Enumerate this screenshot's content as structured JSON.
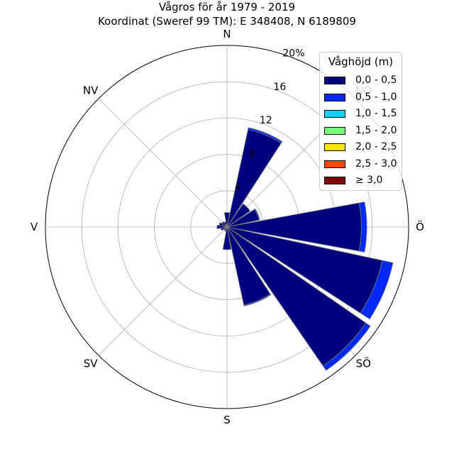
{
  "title_line1": "Vågros för år 1979 - 2019",
  "title_line2": "Koordinat (Sweref 99 TM): E 348408, N 6189809",
  "legend": {
    "title": "Våghöjd (m)",
    "entries": [
      {
        "label": "0,0 - 0,5",
        "color": "#00007f"
      },
      {
        "label": "0,5 - 1,0",
        "color": "#0028ff"
      },
      {
        "label": "1,0 - 1,5",
        "color": "#00d4ff"
      },
      {
        "label": "1,5 - 2,0",
        "color": "#7bff7b"
      },
      {
        "label": "2,0 - 2,5",
        "color": "#ffe500"
      },
      {
        "label": "2,5 - 3,0",
        "color": "#ff4a00"
      },
      {
        "label": "≥ 3,0",
        "color": "#7f0000"
      }
    ]
  },
  "chart_data": {
    "type": "windrose",
    "radial_max": 20,
    "radial_ticks": [
      4,
      8,
      12,
      16,
      20
    ],
    "radial_tick_labels": [
      "4",
      "8",
      "12",
      "16",
      "20%"
    ],
    "direction_labels": [
      {
        "label": "N",
        "angle": 0
      },
      {
        "label": "NO",
        "angle": 45
      },
      {
        "label": "Ö",
        "angle": 90
      },
      {
        "label": "SÖ",
        "angle": 135
      },
      {
        "label": "S",
        "angle": 180
      },
      {
        "label": "SV",
        "angle": 225
      },
      {
        "label": "V",
        "angle": 270
      },
      {
        "label": "NV",
        "angle": 315
      }
    ],
    "sector_width_deg": 22.5,
    "bin_labels": [
      "0,0 - 0,5",
      "0,5 - 1,0",
      "1,0 - 1,5",
      "1,5 - 2,0",
      "2,0 - 2,5",
      "2,5 - 3,0",
      "≥ 3,0"
    ],
    "directions": [
      0,
      22.5,
      45,
      67.5,
      90,
      112.5,
      135,
      157.5,
      180,
      202.5,
      225,
      247.5,
      270,
      292.5,
      315,
      337.5
    ],
    "values": [
      [
        1.6,
        0,
        0,
        0,
        0,
        0,
        0
      ],
      [
        11.0,
        0.2,
        0,
        0,
        0,
        0,
        0
      ],
      [
        3.1,
        0,
        0,
        0,
        0,
        0,
        0
      ],
      [
        3.6,
        0.1,
        0,
        0,
        0,
        0,
        0
      ],
      [
        14.8,
        0.6,
        0,
        0,
        0,
        0,
        0
      ],
      [
        17.5,
        1.2,
        0,
        0,
        0,
        0,
        0
      ],
      [
        18.6,
        0.6,
        0,
        0,
        0,
        0,
        0
      ],
      [
        8.8,
        0.1,
        0,
        0,
        0,
        0,
        0
      ],
      [
        2.5,
        0,
        0,
        0,
        0,
        0,
        0
      ],
      [
        0.5,
        0,
        0,
        0,
        0,
        0,
        0
      ],
      [
        0.4,
        0,
        0,
        0,
        0,
        0,
        0
      ],
      [
        0.7,
        0,
        0,
        0,
        0,
        0,
        0
      ],
      [
        1.1,
        0,
        0,
        0,
        0,
        0,
        0
      ],
      [
        0.9,
        0,
        0,
        0,
        0,
        0,
        0
      ],
      [
        0.7,
        0,
        0,
        0,
        0,
        0,
        0
      ],
      [
        0.6,
        0,
        0,
        0,
        0,
        0,
        0
      ]
    ],
    "grid": true,
    "legend_position": "top-right"
  }
}
